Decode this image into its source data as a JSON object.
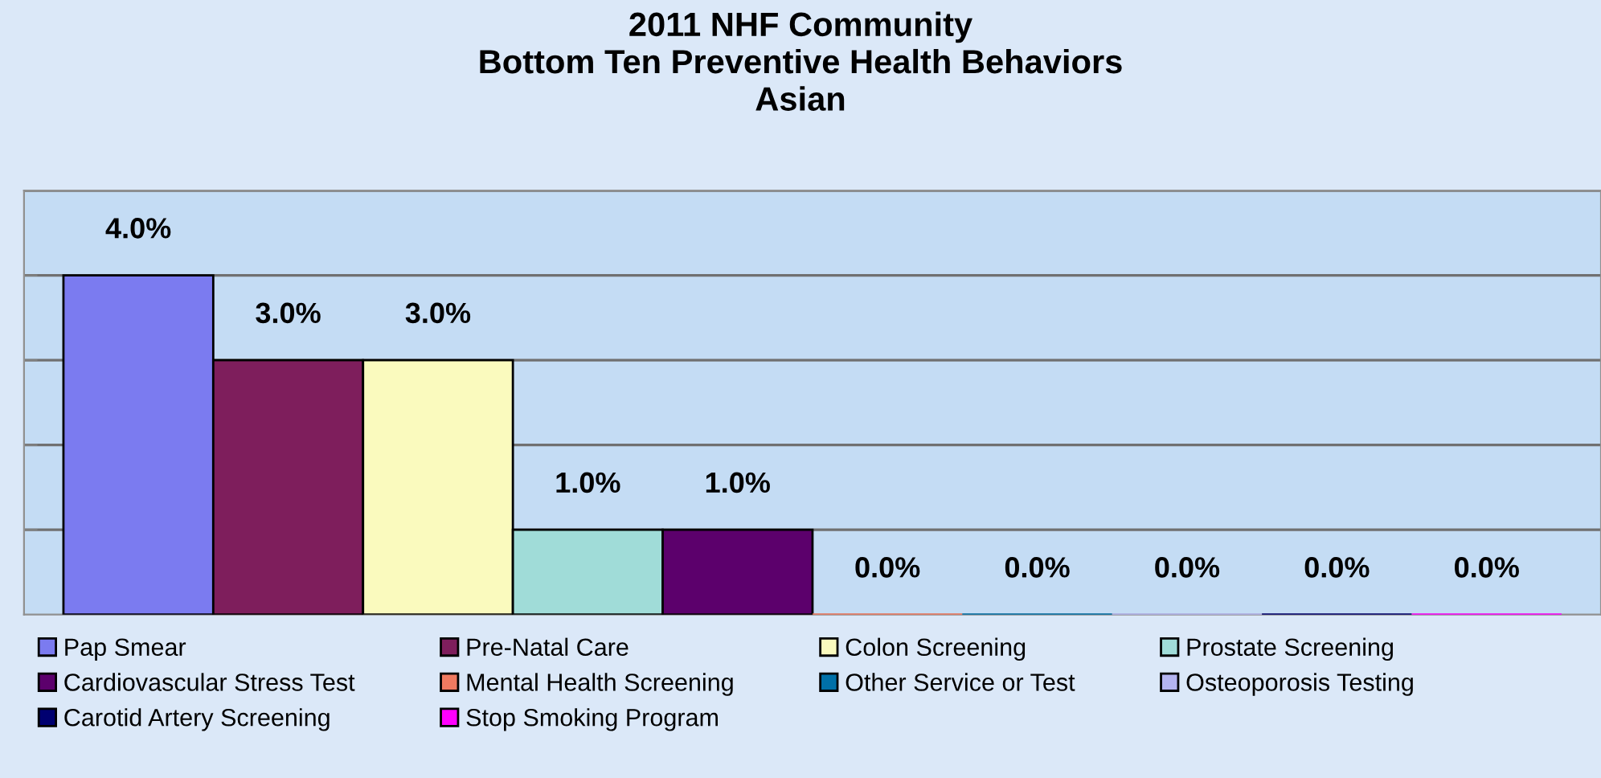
{
  "chart_data": {
    "type": "bar",
    "title": "2011 NHF Community\nBottom Ten Preventive Health Behaviors\nAsian",
    "categories": [
      null
    ],
    "series": [
      {
        "name": "Pap Smear",
        "color": "#7b7bf0",
        "values": [
          4
        ],
        "value_labels": [
          "4.0%"
        ]
      },
      {
        "name": "Pre-Natal Care",
        "color": "#7e1e5c",
        "values": [
          3
        ],
        "value_labels": [
          "3.0%"
        ]
      },
      {
        "name": "Colon Screening",
        "color": "#fafabe",
        "values": [
          3
        ],
        "value_labels": [
          "3.0%"
        ]
      },
      {
        "name": "Prostate Screening",
        "color": "#a0dcd8",
        "values": [
          1
        ],
        "value_labels": [
          "1.0%"
        ]
      },
      {
        "name": "Cardiovascular Stress Test",
        "color": "#5c006c",
        "values": [
          1
        ],
        "value_labels": [
          "1.0%"
        ]
      },
      {
        "name": "Mental Health Screening",
        "color": "#f07a60",
        "values": [
          0
        ],
        "value_labels": [
          "0.0%"
        ]
      },
      {
        "name": "Other Service or Test",
        "color": "#0070a8",
        "values": [
          0
        ],
        "value_labels": [
          "0.0%"
        ]
      },
      {
        "name": "Osteoporosis Testing",
        "color": "#b4b4f0",
        "values": [
          0
        ],
        "value_labels": [
          "0.0%"
        ]
      },
      {
        "name": "Carotid Artery Screening",
        "color": "#000070",
        "values": [
          0
        ],
        "value_labels": [
          "0.0%"
        ]
      },
      {
        "name": "Stop Smoking Program",
        "color": "#ff00ff",
        "values": [
          0
        ],
        "value_labels": [
          "0.0%"
        ]
      }
    ],
    "ylim": [
      0,
      5
    ],
    "yticks": [
      {
        "value": 1,
        "label": null
      },
      {
        "value": 2,
        "label": null
      },
      {
        "value": 3,
        "label": null
      },
      {
        "value": 4,
        "label": null
      },
      {
        "value": 5,
        "label": null
      }
    ],
    "grid": "y",
    "legend": "bottom"
  }
}
